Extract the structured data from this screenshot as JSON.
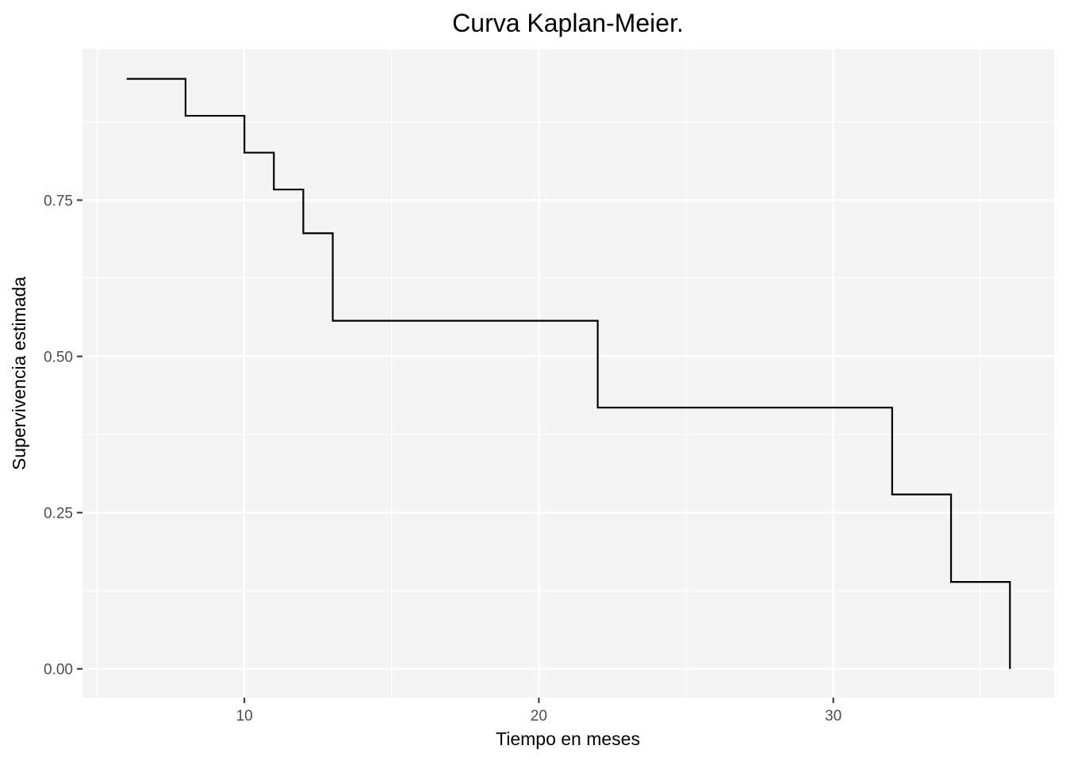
{
  "chart_data": {
    "type": "line",
    "title": "Curva Kaplan-Meier.",
    "xlabel": "Tiempo en meses",
    "ylabel": "Supervivencia estimada",
    "xlim": [
      4.5,
      37.5
    ],
    "ylim": [
      -0.046,
      0.9916
    ],
    "x_major_ticks": [
      10,
      20,
      30
    ],
    "x_tick_labels": [
      "10",
      "20",
      "30"
    ],
    "x_minor_ticks": [
      5,
      15,
      25,
      35
    ],
    "y_major_ticks": [
      0,
      0.25,
      0.5,
      0.75
    ],
    "y_tick_labels": [
      "0.00",
      "0.25",
      "0.50",
      "0.75"
    ],
    "y_minor_ticks": [
      0.125,
      0.375,
      0.625,
      0.875
    ],
    "grid": true,
    "panel_background": "#f4f4f4",
    "grid_color": "#ffffff",
    "series": [
      {
        "step": "post",
        "color": "#000000",
        "x": [
          6,
          8,
          10,
          11,
          12,
          13,
          22,
          32,
          34,
          36
        ],
        "y": [
          0.944,
          0.885,
          0.826,
          0.767,
          0.697,
          0.557,
          0.418,
          0.279,
          0.139,
          0
        ]
      }
    ]
  }
}
